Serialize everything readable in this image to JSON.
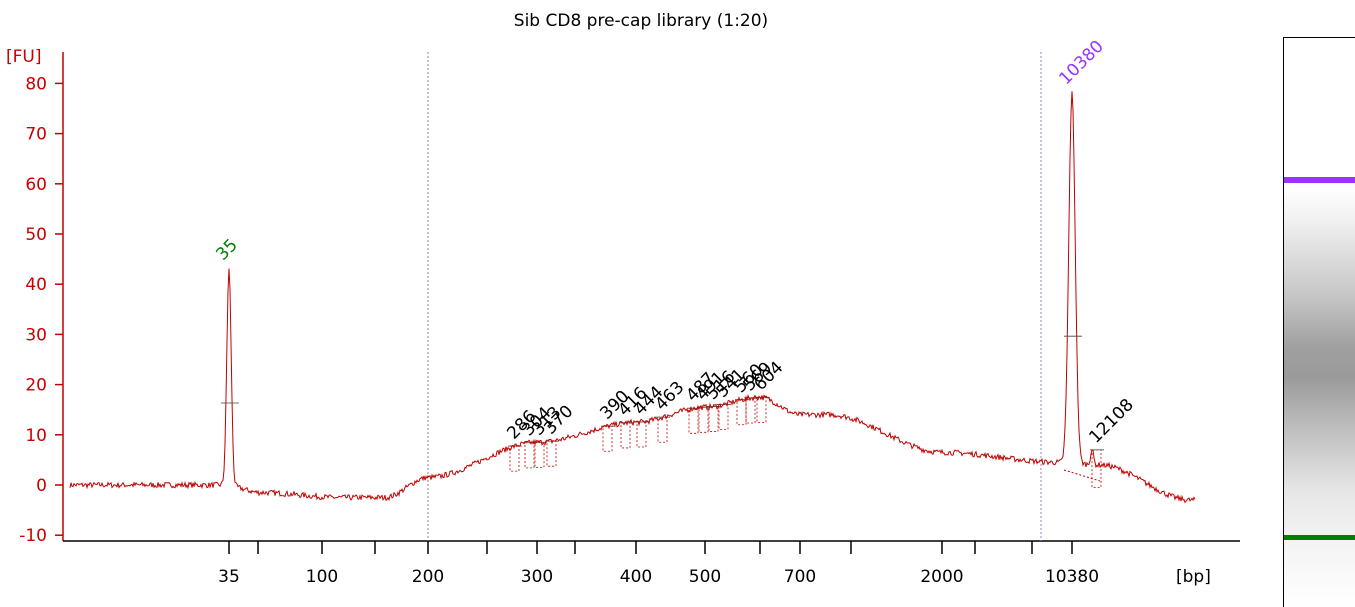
{
  "chart_data": {
    "type": "line",
    "title": "Sib CD8 pre-cap library (1:20)",
    "ylabel": "[FU]",
    "xlabel": "[bp]",
    "ylim": [
      -10,
      85
    ],
    "y_ticks": [
      -10,
      0,
      10,
      20,
      30,
      40,
      50,
      60,
      70,
      80
    ],
    "x_tick_labels": [
      "35",
      "100",
      "200",
      "300",
      "400",
      "500",
      "700",
      "2000",
      "10380"
    ],
    "series": [
      {
        "color": "#c00000",
        "x": [
          "10",
          "35",
          "100",
          "150",
          "200",
          "300",
          "400",
          "500",
          "600",
          "700",
          "1000",
          "2000",
          "5000",
          "10380",
          "12108",
          "15000"
        ],
        "y": [
          0,
          43,
          -1,
          -2.5,
          1.5,
          8.5,
          12.5,
          15.5,
          17.5,
          14,
          13,
          6.5,
          5,
          78,
          5,
          -3
        ]
      }
    ],
    "marker_peaks": [
      {
        "label": "35",
        "color": "#008000",
        "value": 43
      },
      {
        "label": "10380",
        "color": "#9933ff",
        "value": 78
      }
    ],
    "sample_peaks": [
      "286",
      "304",
      "313",
      "370",
      "390",
      "416",
      "444",
      "463",
      "487",
      "491",
      "516",
      "541",
      "560",
      "569",
      "604",
      "12108"
    ],
    "ladder_lines": [
      "200",
      "10380"
    ],
    "gel": {
      "upper_marker_color": "#9933ff",
      "lower_marker_color": "#008000",
      "smear_color": "#9a9a9a"
    }
  }
}
